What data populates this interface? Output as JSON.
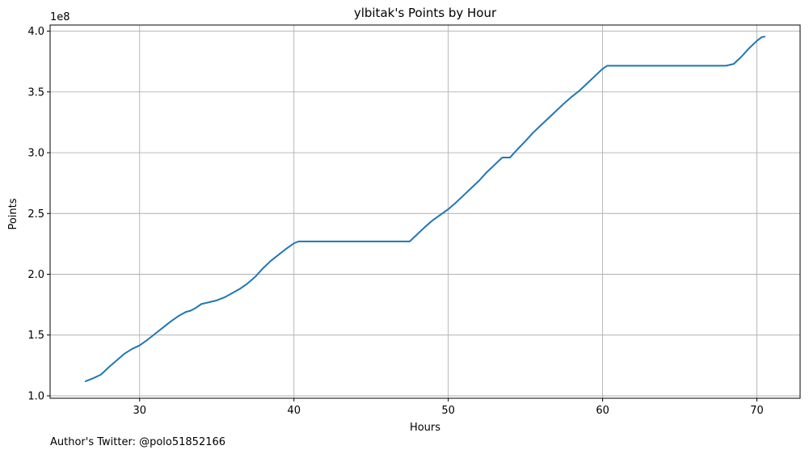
{
  "chart_data": {
    "type": "line",
    "title": "ylbitak's Points by Hour",
    "xlabel": "Hours",
    "ylabel": "Points",
    "y_offset_label": "1e8",
    "xlim": [
      24.2,
      72.8
    ],
    "ylim": [
      0.98,
      4.05
    ],
    "xticks": [
      30,
      40,
      50,
      60,
      70
    ],
    "yticks": [
      1.0,
      1.5,
      2.0,
      2.5,
      3.0,
      3.5,
      4.0
    ],
    "xtick_labels": [
      "30",
      "40",
      "50",
      "60",
      "70"
    ],
    "ytick_labels": [
      "1.0",
      "1.5",
      "2.0",
      "2.5",
      "3.0",
      "3.5",
      "4.0"
    ],
    "grid": true,
    "line_color": "#1f77b4",
    "series": [
      {
        "x": [
          26.5,
          27.0,
          27.5,
          28.0,
          28.5,
          29.0,
          29.5,
          30.0,
          30.5,
          31.0,
          31.5,
          32.0,
          32.5,
          33.0,
          33.3,
          33.6,
          34.0,
          34.5,
          35.0,
          35.5,
          36.0,
          36.5,
          37.0,
          37.5,
          38.0,
          38.5,
          39.0,
          39.5,
          40.0,
          40.3,
          41.0,
          42.0,
          43.0,
          44.0,
          45.0,
          46.0,
          47.0,
          47.5,
          48.0,
          48.5,
          49.0,
          49.5,
          50.0,
          50.5,
          51.0,
          51.5,
          52.0,
          52.5,
          53.0,
          53.5,
          54.0,
          54.5,
          55.0,
          55.5,
          56.0,
          56.5,
          57.0,
          57.5,
          58.0,
          58.5,
          59.0,
          59.5,
          60.0,
          60.3,
          61.0,
          62.0,
          63.0,
          64.0,
          65.0,
          66.0,
          67.0,
          68.0,
          68.5,
          69.0,
          69.5,
          70.0,
          70.3,
          70.5
        ],
        "y": [
          1.12,
          1.145,
          1.175,
          1.235,
          1.29,
          1.345,
          1.385,
          1.415,
          1.46,
          1.51,
          1.56,
          1.61,
          1.655,
          1.69,
          1.7,
          1.72,
          1.755,
          1.77,
          1.785,
          1.81,
          1.845,
          1.88,
          1.925,
          1.98,
          2.05,
          2.11,
          2.16,
          2.21,
          2.255,
          2.27,
          2.27,
          2.27,
          2.27,
          2.27,
          2.27,
          2.27,
          2.27,
          2.27,
          2.33,
          2.39,
          2.445,
          2.49,
          2.535,
          2.59,
          2.65,
          2.71,
          2.77,
          2.84,
          2.9,
          2.96,
          2.96,
          3.03,
          3.095,
          3.165,
          3.225,
          3.285,
          3.345,
          3.405,
          3.46,
          3.51,
          3.57,
          3.63,
          3.69,
          3.715,
          3.715,
          3.715,
          3.715,
          3.715,
          3.715,
          3.715,
          3.715,
          3.715,
          3.73,
          3.79,
          3.86,
          3.92,
          3.95,
          3.955
        ]
      }
    ]
  },
  "footer": {
    "author_note": "Author's Twitter: @polo51852166"
  }
}
